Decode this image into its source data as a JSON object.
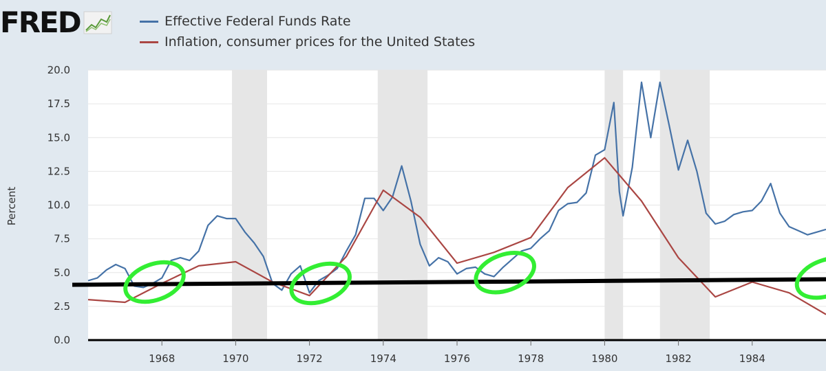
{
  "logo": {
    "text": "FRED",
    "icon": "line-chart-icon"
  },
  "legend": [
    {
      "label": "Effective Federal Funds Rate",
      "color": "#4572a7"
    },
    {
      "label": "Inflation, consumer prices for the United States",
      "color": "#aa4643"
    }
  ],
  "chart_data": {
    "type": "line",
    "xlabel": "",
    "ylabel": "Percent",
    "xlim": [
      1966.0,
      1986.0
    ],
    "ylim": [
      0,
      20
    ],
    "x_ticks": [
      1968,
      1970,
      1972,
      1974,
      1976,
      1978,
      1980,
      1982,
      1984
    ],
    "y_ticks": [
      "0.0",
      "2.5",
      "5.0",
      "7.5",
      "10.0",
      "12.5",
      "15.0",
      "17.5",
      "20.0"
    ],
    "grid": "horizontal",
    "recessions": [
      [
        1969.9,
        1970.85
      ],
      [
        1973.85,
        1975.2
      ],
      [
        1980.0,
        1980.5
      ],
      [
        1981.5,
        1982.85
      ]
    ],
    "series": [
      {
        "name": "Effective Federal Funds Rate",
        "color": "#4572a7",
        "points": [
          [
            1966.0,
            4.4
          ],
          [
            1966.25,
            4.6
          ],
          [
            1966.5,
            5.2
          ],
          [
            1966.75,
            5.6
          ],
          [
            1967.0,
            5.3
          ],
          [
            1967.25,
            4.0
          ],
          [
            1967.5,
            3.9
          ],
          [
            1967.75,
            4.2
          ],
          [
            1968.0,
            4.6
          ],
          [
            1968.25,
            5.9
          ],
          [
            1968.5,
            6.1
          ],
          [
            1968.75,
            5.9
          ],
          [
            1969.0,
            6.6
          ],
          [
            1969.25,
            8.5
          ],
          [
            1969.5,
            9.2
          ],
          [
            1969.75,
            9.0
          ],
          [
            1970.0,
            9.0
          ],
          [
            1970.25,
            8.0
          ],
          [
            1970.5,
            7.2
          ],
          [
            1970.75,
            6.2
          ],
          [
            1971.0,
            4.2
          ],
          [
            1971.25,
            3.7
          ],
          [
            1971.5,
            4.9
          ],
          [
            1971.75,
            5.5
          ],
          [
            1972.0,
            3.5
          ],
          [
            1972.25,
            4.4
          ],
          [
            1972.5,
            4.8
          ],
          [
            1972.75,
            5.3
          ],
          [
            1973.0,
            6.6
          ],
          [
            1973.25,
            7.8
          ],
          [
            1973.5,
            10.5
          ],
          [
            1973.75,
            10.5
          ],
          [
            1974.0,
            9.6
          ],
          [
            1974.25,
            10.6
          ],
          [
            1974.5,
            12.9
          ],
          [
            1974.75,
            10.3
          ],
          [
            1975.0,
            7.1
          ],
          [
            1975.25,
            5.5
          ],
          [
            1975.5,
            6.1
          ],
          [
            1975.75,
            5.8
          ],
          [
            1976.0,
            4.9
          ],
          [
            1976.25,
            5.3
          ],
          [
            1976.5,
            5.4
          ],
          [
            1976.75,
            4.9
          ],
          [
            1977.0,
            4.7
          ],
          [
            1977.25,
            5.4
          ],
          [
            1977.5,
            6.0
          ],
          [
            1977.75,
            6.6
          ],
          [
            1978.0,
            6.8
          ],
          [
            1978.25,
            7.5
          ],
          [
            1978.5,
            8.1
          ],
          [
            1978.75,
            9.6
          ],
          [
            1979.0,
            10.1
          ],
          [
            1979.25,
            10.2
          ],
          [
            1979.5,
            10.9
          ],
          [
            1979.75,
            13.7
          ],
          [
            1980.0,
            14.1
          ],
          [
            1980.25,
            17.6
          ],
          [
            1980.4,
            11.0
          ],
          [
            1980.5,
            9.2
          ],
          [
            1980.75,
            12.8
          ],
          [
            1981.0,
            19.1
          ],
          [
            1981.25,
            15.0
          ],
          [
            1981.5,
            19.1
          ],
          [
            1981.75,
            15.9
          ],
          [
            1982.0,
            12.6
          ],
          [
            1982.25,
            14.8
          ],
          [
            1982.5,
            12.5
          ],
          [
            1982.75,
            9.4
          ],
          [
            1983.0,
            8.6
          ],
          [
            1983.25,
            8.8
          ],
          [
            1983.5,
            9.3
          ],
          [
            1983.75,
            9.5
          ],
          [
            1984.0,
            9.6
          ],
          [
            1984.25,
            10.3
          ],
          [
            1984.5,
            11.6
          ],
          [
            1984.75,
            9.4
          ],
          [
            1985.0,
            8.4
          ],
          [
            1985.25,
            8.1
          ],
          [
            1985.5,
            7.8
          ],
          [
            1985.75,
            8.0
          ],
          [
            1986.0,
            8.2
          ]
        ]
      },
      {
        "name": "Inflation, consumer prices for the United States",
        "color": "#aa4643",
        "points": [
          [
            1966.0,
            3.0
          ],
          [
            1967.0,
            2.8
          ],
          [
            1968.0,
            4.2
          ],
          [
            1969.0,
            5.5
          ],
          [
            1970.0,
            5.8
          ],
          [
            1971.0,
            4.3
          ],
          [
            1972.0,
            3.3
          ],
          [
            1973.0,
            6.2
          ],
          [
            1974.0,
            11.1
          ],
          [
            1975.0,
            9.1
          ],
          [
            1976.0,
            5.7
          ],
          [
            1977.0,
            6.5
          ],
          [
            1978.0,
            7.6
          ],
          [
            1979.0,
            11.3
          ],
          [
            1980.0,
            13.5
          ],
          [
            1981.0,
            10.3
          ],
          [
            1982.0,
            6.1
          ],
          [
            1983.0,
            3.2
          ],
          [
            1984.0,
            4.3
          ],
          [
            1985.0,
            3.5
          ],
          [
            1986.0,
            1.9
          ]
        ]
      }
    ],
    "annotations": {
      "horizontal_line": {
        "y": 4.3,
        "color": "#000000"
      },
      "circles": [
        {
          "x": 1967.8,
          "y": 4.3,
          "color": "#33ee33"
        },
        {
          "x": 1972.3,
          "y": 4.2,
          "color": "#33ee33"
        },
        {
          "x": 1977.3,
          "y": 5.0,
          "color": "#33ee33"
        },
        {
          "x": 1986.0,
          "y": 4.6,
          "color": "#33ee33"
        }
      ]
    }
  }
}
